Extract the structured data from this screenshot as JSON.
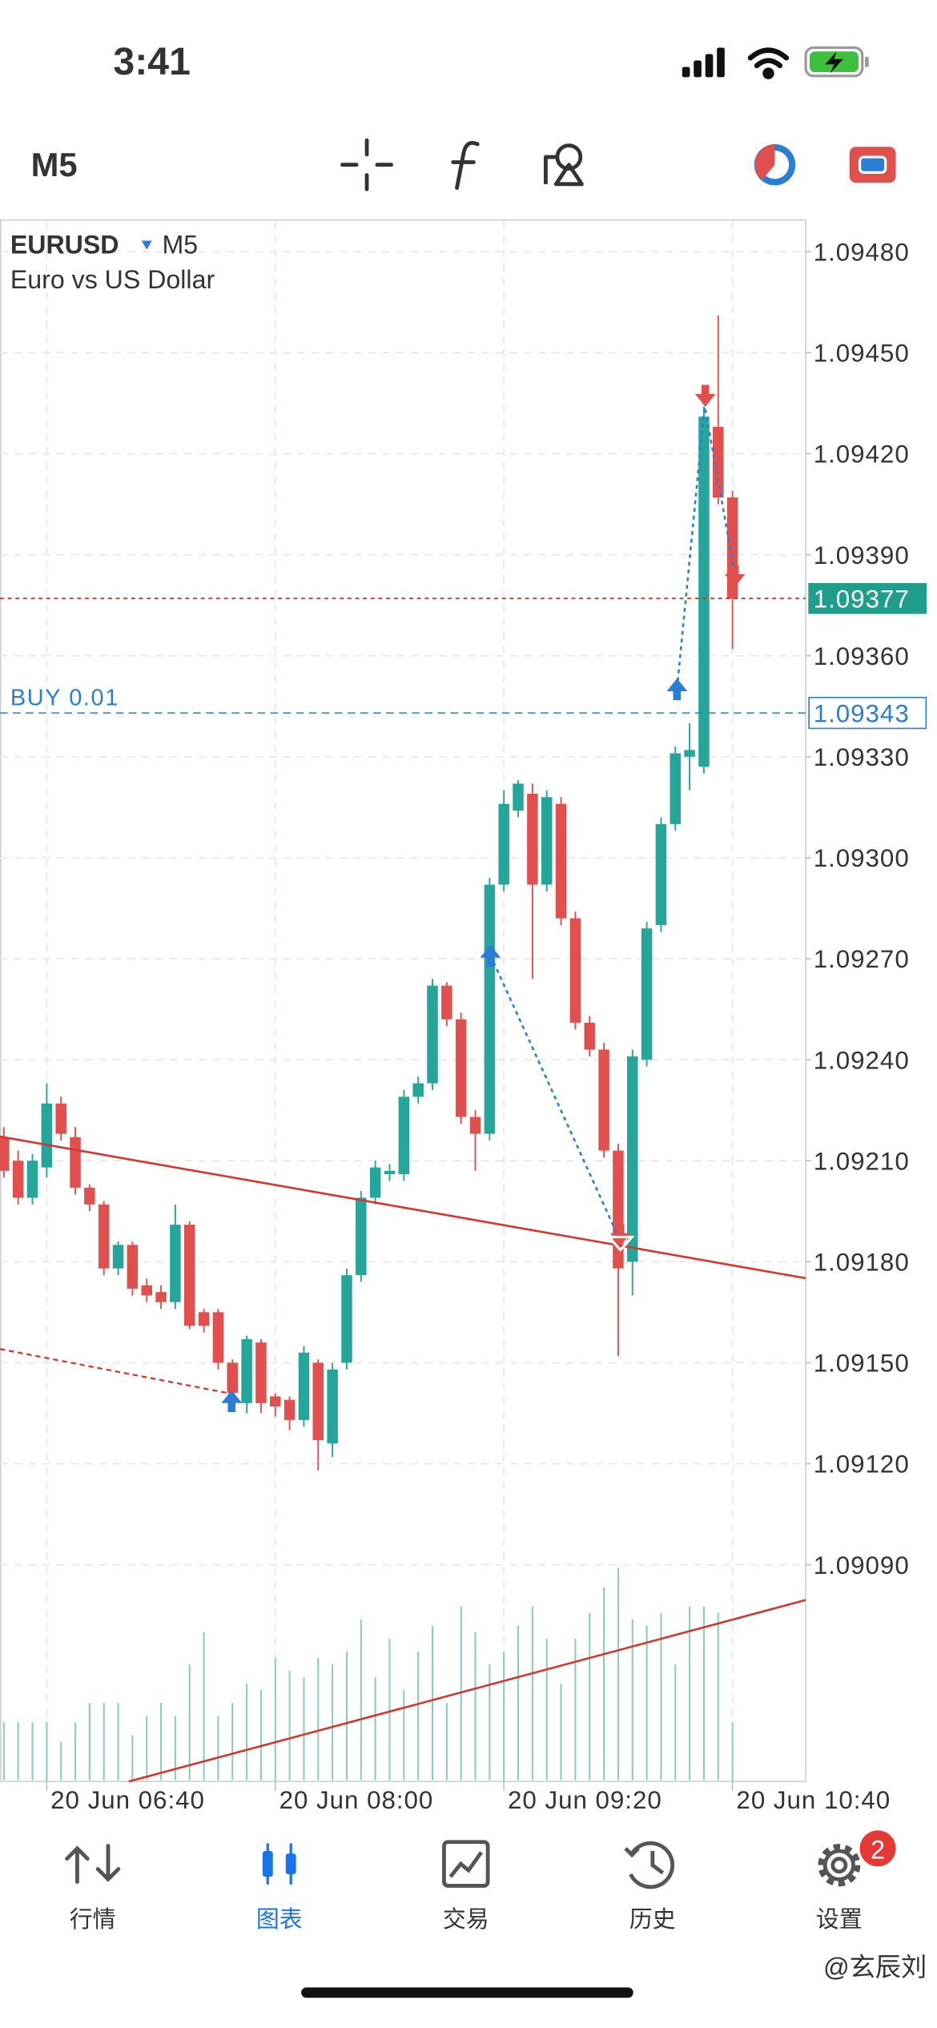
{
  "status_bar": {
    "time": "3:41"
  },
  "toolbar": {
    "timeframe": "M5"
  },
  "chart_data": {
    "type": "candlestick",
    "symbol": "EURUSD",
    "timeframe": "M5",
    "description": "Euro vs US Dollar",
    "categories": [
      null,
      null,
      null,
      "20 Jun 06:40",
      null,
      null,
      null,
      null,
      null,
      null,
      null,
      null,
      null,
      null,
      null,
      null,
      null,
      null,
      null,
      "20 Jun 08:00",
      null,
      null,
      null,
      null,
      null,
      null,
      null,
      null,
      null,
      null,
      null,
      null,
      null,
      null,
      null,
      "20 Jun 09:20",
      null,
      null,
      null,
      null,
      null,
      null,
      null,
      null,
      null,
      null,
      null,
      null,
      null,
      null,
      null,
      "20 Jun 10:40"
    ],
    "open": [
      1.09217,
      1.0921,
      1.09199,
      1.09208,
      1.09227,
      1.09217,
      1.09202,
      1.09197,
      1.09178,
      1.09185,
      1.09173,
      1.09171,
      1.09168,
      1.09191,
      1.09165,
      1.09165,
      1.0915,
      1.09138,
      1.09156,
      1.0914,
      1.09139,
      1.09133,
      1.0915,
      1.09126,
      1.0915,
      1.09176,
      1.09199,
      1.09206,
      1.09206,
      1.09229,
      1.09233,
      1.09262,
      1.09252,
      1.09223,
      1.09218,
      1.09292,
      1.09314,
      1.09319,
      1.09292,
      1.09316,
      1.09282,
      1.09251,
      1.09243,
      1.09213,
      1.0918,
      1.0924,
      1.0928,
      1.0931,
      1.0933,
      1.09327,
      1.09428,
      1.09407
    ],
    "high": [
      1.0922,
      1.09213,
      1.09212,
      1.09233,
      1.09229,
      1.0922,
      1.09203,
      1.09198,
      1.09186,
      1.09186,
      1.09175,
      1.09173,
      1.09197,
      1.09192,
      1.09166,
      1.09166,
      1.09151,
      1.09158,
      1.09157,
      1.09141,
      1.0914,
      1.09155,
      1.09151,
      1.0915,
      1.09178,
      1.09201,
      1.0921,
      1.09209,
      1.09231,
      1.09235,
      1.09264,
      1.09263,
      1.09254,
      1.09225,
      1.09294,
      1.0932,
      1.09323,
      1.09322,
      1.0932,
      1.09318,
      1.09284,
      1.09253,
      1.09245,
      1.09215,
      1.09243,
      1.09281,
      1.09312,
      1.09333,
      1.0934,
      1.09434,
      1.09461,
      1.09409
    ],
    "low": [
      1.09205,
      1.09197,
      1.09197,
      1.09205,
      1.09216,
      1.092,
      1.09195,
      1.09176,
      1.09176,
      1.0917,
      1.09168,
      1.09166,
      1.09166,
      1.0916,
      1.09159,
      1.09148,
      1.09139,
      1.09135,
      1.09135,
      1.09134,
      1.0913,
      1.09131,
      1.09118,
      1.09122,
      1.09148,
      1.09174,
      1.09197,
      1.09204,
      1.09204,
      1.09227,
      1.09231,
      1.0925,
      1.09221,
      1.09207,
      1.09216,
      1.0929,
      1.09312,
      1.09264,
      1.0929,
      1.0928,
      1.09249,
      1.09241,
      1.09211,
      1.09152,
      1.0917,
      1.09238,
      1.09278,
      1.09308,
      1.0932,
      1.09325,
      1.09405,
      1.09362
    ],
    "close": [
      1.09207,
      1.09199,
      1.0921,
      1.09227,
      1.09218,
      1.09202,
      1.09197,
      1.09178,
      1.09185,
      1.09172,
      1.0917,
      1.09168,
      1.09191,
      1.09161,
      1.09161,
      1.0915,
      1.09141,
      1.09157,
      1.09138,
      1.09137,
      1.09133,
      1.09153,
      1.09127,
      1.09148,
      1.09176,
      1.09199,
      1.09208,
      1.09207,
      1.09229,
      1.09233,
      1.09262,
      1.09252,
      1.09223,
      1.09218,
      1.09292,
      1.09316,
      1.09322,
      1.09292,
      1.09318,
      1.09282,
      1.09251,
      1.09243,
      1.09213,
      1.09178,
      1.09241,
      1.09279,
      1.0931,
      1.09331,
      1.09332,
      1.09431,
      1.09407,
      1.09377
    ],
    "volumes": [
      45,
      45,
      45,
      45,
      30,
      45,
      60,
      60,
      60,
      35,
      50,
      60,
      50,
      90,
      115,
      50,
      60,
      75,
      70,
      95,
      85,
      80,
      95,
      90,
      100,
      125,
      80,
      110,
      70,
      100,
      120,
      60,
      135,
      115,
      90,
      100,
      120,
      135,
      110,
      75,
      110,
      130,
      150,
      165,
      125,
      120,
      130,
      90,
      135,
      135,
      130,
      45
    ],
    "up_color": "#26a69a",
    "down_color": "#e0504f",
    "volume_color": "#8fcac2",
    "ylim": [
      1.09026,
      1.09489
    ],
    "yticks": [
      {
        "value": 1.0948,
        "label": "1.09480"
      },
      {
        "value": 1.0945,
        "label": "1.09450"
      },
      {
        "value": 1.0942,
        "label": "1.09420"
      },
      {
        "value": 1.0939,
        "label": "1.09390"
      },
      {
        "value": 1.0936,
        "label": "1.09360"
      },
      {
        "value": 1.0933,
        "label": "1.09330"
      },
      {
        "value": 1.093,
        "label": "1.09300"
      },
      {
        "value": 1.0927,
        "label": "1.09270"
      },
      {
        "value": 1.0924,
        "label": "1.09240"
      },
      {
        "value": 1.0921,
        "label": "1.09210"
      },
      {
        "value": 1.0918,
        "label": "1.09180"
      },
      {
        "value": 1.0915,
        "label": "1.09150"
      },
      {
        "value": 1.0912,
        "label": "1.09120"
      },
      {
        "value": 1.0909,
        "label": "1.09090"
      }
    ],
    "grid": true,
    "bid": 1.09377,
    "bid_color": "#1f9e8b",
    "order": {
      "label": "BUY 0.01",
      "price": 1.09343,
      "color": "#2a7fd4"
    }
  },
  "tabs": [
    {
      "label": "行情"
    },
    {
      "label": "图表",
      "active": true
    },
    {
      "label": "交易"
    },
    {
      "label": "历史"
    },
    {
      "label": "设置",
      "badge": 2
    }
  ],
  "watermark": "@玄辰刘"
}
